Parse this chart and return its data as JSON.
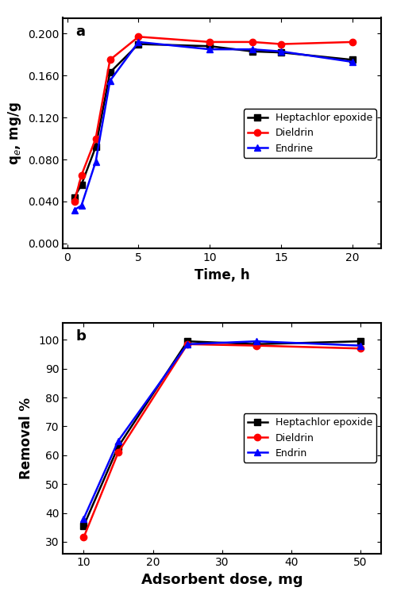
{
  "plot_a": {
    "time_x": [
      0.5,
      1,
      2,
      3,
      5,
      10,
      13,
      15,
      20
    ],
    "heptachlor": [
      0.044,
      0.056,
      0.092,
      0.163,
      0.19,
      0.188,
      0.183,
      0.182,
      0.175
    ],
    "dieldrin": [
      0.04,
      0.065,
      0.1,
      0.175,
      0.197,
      0.192,
      0.192,
      0.19,
      0.192
    ],
    "endrine": [
      0.032,
      0.036,
      0.078,
      0.155,
      0.192,
      0.185,
      0.185,
      0.183,
      0.173
    ],
    "xlabel": "Time, h",
    "ylabel": "q$_e$, mg/g",
    "label_a": "a",
    "yticks": [
      0.0,
      0.04,
      0.08,
      0.12,
      0.16,
      0.2
    ],
    "xticks": [
      0,
      5,
      10,
      15,
      20
    ],
    "ylim": [
      -0.005,
      0.215
    ],
    "xlim": [
      -0.3,
      22
    ]
  },
  "plot_b": {
    "dose_x": [
      10,
      15,
      25,
      35,
      50
    ],
    "heptachlor": [
      35.5,
      63.0,
      99.5,
      98.5,
      99.5
    ],
    "dieldrin": [
      31.5,
      61.0,
      98.5,
      98.0,
      97.0
    ],
    "endrin": [
      38.0,
      65.0,
      98.5,
      99.5,
      98.0
    ],
    "xlabel": "Adsorbent dose, mg",
    "ylabel": "Removal %",
    "label_b": "b",
    "yticks": [
      30,
      40,
      50,
      60,
      70,
      80,
      90,
      100
    ],
    "xticks": [
      10,
      20,
      30,
      40,
      50
    ],
    "ylim": [
      26,
      106
    ],
    "xlim": [
      7,
      53
    ]
  },
  "colors": {
    "heptachlor": "#000000",
    "dieldrin": "#ff0000",
    "endrine": "#0000ff"
  },
  "legend_a": [
    "Heptachlor epoxide",
    "Dieldrin",
    "Endrine"
  ],
  "legend_b": [
    "Heptachlor epoxide",
    "Dieldrin",
    "Endrin"
  ],
  "marker_heptachlor": "s",
  "marker_dieldrin": "o",
  "marker_endrine": "^",
  "linewidth": 1.8,
  "markersize": 6,
  "fontsize_label": 12,
  "fontsize_tick": 10,
  "fontsize_legend": 9,
  "fontsize_panel": 13
}
